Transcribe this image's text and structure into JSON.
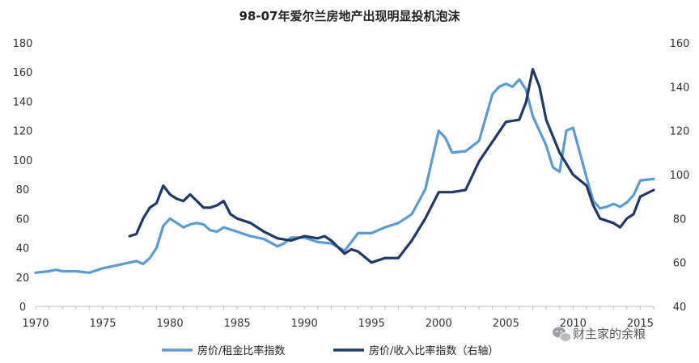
{
  "chart_data": {
    "type": "line",
    "title": "98-07年爱尔兰房地产出现明显投机泡沫",
    "xlabel": "",
    "ylabel": "",
    "x_ticks": [
      "1970",
      "1975",
      "1980",
      "1985",
      "1990",
      "1995",
      "2000",
      "2005",
      "2010",
      "2015"
    ],
    "xlim": [
      1970,
      2016
    ],
    "ylim_left": [
      0,
      180
    ],
    "ylim_right": [
      40,
      160
    ],
    "y_ticks_left": [
      "0",
      "20",
      "40",
      "60",
      "80",
      "100",
      "120",
      "140",
      "160",
      "180"
    ],
    "y_ticks_right": [
      "40",
      "60",
      "80",
      "100",
      "120",
      "140",
      "160"
    ],
    "grid": false,
    "legend_position": "bottom",
    "series": [
      {
        "name": "房价/租金比率指数",
        "axis": "left",
        "color": "#5b9bd5",
        "points": [
          [
            1970,
            23
          ],
          [
            1971,
            24
          ],
          [
            1971.5,
            25
          ],
          [
            1972,
            24
          ],
          [
            1973,
            24
          ],
          [
            1974,
            23
          ],
          [
            1975,
            26
          ],
          [
            1976,
            28
          ],
          [
            1977,
            30
          ],
          [
            1977.5,
            31
          ],
          [
            1978,
            29
          ],
          [
            1978.5,
            33
          ],
          [
            1979,
            40
          ],
          [
            1979.5,
            55
          ],
          [
            1980,
            60
          ],
          [
            1980.5,
            57
          ],
          [
            1981,
            54
          ],
          [
            1981.5,
            56
          ],
          [
            1982,
            57
          ],
          [
            1982.5,
            56
          ],
          [
            1983,
            52
          ],
          [
            1983.5,
            51
          ],
          [
            1984,
            54
          ],
          [
            1985,
            51
          ],
          [
            1986,
            48
          ],
          [
            1987,
            46
          ],
          [
            1988,
            41
          ],
          [
            1988.5,
            43
          ],
          [
            1989,
            47
          ],
          [
            1990,
            47
          ],
          [
            1991,
            44
          ],
          [
            1992,
            43
          ],
          [
            1993,
            38
          ],
          [
            1993.5,
            44
          ],
          [
            1994,
            50
          ],
          [
            1995,
            50
          ],
          [
            1996,
            54
          ],
          [
            1997,
            57
          ],
          [
            1998,
            63
          ],
          [
            1999,
            80
          ],
          [
            2000,
            120
          ],
          [
            2000.5,
            115
          ],
          [
            2001,
            105
          ],
          [
            2002,
            106
          ],
          [
            2003,
            113
          ],
          [
            2004,
            145
          ],
          [
            2004.5,
            150
          ],
          [
            2005,
            152
          ],
          [
            2005.5,
            150
          ],
          [
            2006,
            155
          ],
          [
            2006.5,
            148
          ],
          [
            2007,
            130
          ],
          [
            2008,
            110
          ],
          [
            2008.5,
            95
          ],
          [
            2009,
            92
          ],
          [
            2009.5,
            120
          ],
          [
            2010,
            122
          ],
          [
            2010.5,
            105
          ],
          [
            2011,
            88
          ],
          [
            2011.5,
            72
          ],
          [
            2012,
            67
          ],
          [
            2012.5,
            68
          ],
          [
            2013,
            70
          ],
          [
            2013.5,
            68
          ],
          [
            2014,
            71
          ],
          [
            2014.5,
            76
          ],
          [
            2015,
            86
          ],
          [
            2016,
            87
          ]
        ]
      },
      {
        "name": "房价/收入比率指数（右轴）",
        "axis": "right",
        "color": "#1f3864",
        "points": [
          [
            1977,
            72
          ],
          [
            1977.5,
            73
          ],
          [
            1978,
            80
          ],
          [
            1978.5,
            85
          ],
          [
            1979,
            87
          ],
          [
            1979.5,
            95
          ],
          [
            1980,
            91
          ],
          [
            1980.5,
            89
          ],
          [
            1981,
            88
          ],
          [
            1981.5,
            91
          ],
          [
            1982,
            88
          ],
          [
            1982.5,
            85
          ],
          [
            1983,
            85
          ],
          [
            1983.5,
            86
          ],
          [
            1984,
            88
          ],
          [
            1984.5,
            82
          ],
          [
            1985,
            80
          ],
          [
            1986,
            78
          ],
          [
            1987,
            74
          ],
          [
            1988,
            71
          ],
          [
            1989,
            70
          ],
          [
            1990,
            72
          ],
          [
            1991,
            71
          ],
          [
            1991.5,
            72
          ],
          [
            1992,
            70
          ],
          [
            1993,
            64
          ],
          [
            1993.5,
            66
          ],
          [
            1994,
            65
          ],
          [
            1995,
            60
          ],
          [
            1996,
            62
          ],
          [
            1997,
            62
          ],
          [
            1998,
            70
          ],
          [
            1999,
            80
          ],
          [
            2000,
            92
          ],
          [
            2001,
            92
          ],
          [
            2002,
            93
          ],
          [
            2003,
            106
          ],
          [
            2004,
            115
          ],
          [
            2005,
            124
          ],
          [
            2006,
            125
          ],
          [
            2006.5,
            133
          ],
          [
            2007,
            148
          ],
          [
            2007.5,
            140
          ],
          [
            2008,
            125
          ],
          [
            2009,
            110
          ],
          [
            2010,
            100
          ],
          [
            2011,
            95
          ],
          [
            2011.5,
            86
          ],
          [
            2012,
            80
          ],
          [
            2013,
            78
          ],
          [
            2013.5,
            76
          ],
          [
            2014,
            80
          ],
          [
            2014.5,
            82
          ],
          [
            2015,
            90
          ],
          [
            2016,
            93
          ]
        ]
      }
    ]
  },
  "watermark": {
    "text": "财主家的余粮",
    "icon": "wechat-icon"
  }
}
